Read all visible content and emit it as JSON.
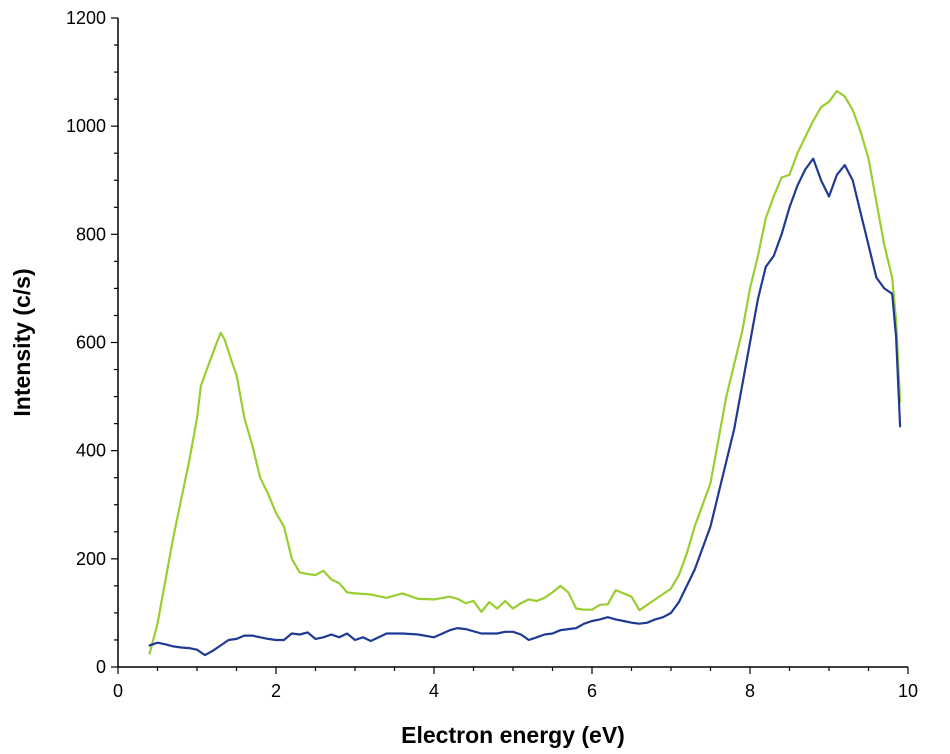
{
  "chart_data": {
    "type": "line",
    "title": "",
    "xlabel": "Electron energy (eV)",
    "ylabel": "Intensity (c/s)",
    "xlim": [
      0,
      10
    ],
    "ylim": [
      0,
      1200
    ],
    "xticks": [
      0,
      2,
      4,
      6,
      8,
      10
    ],
    "yticks": [
      0,
      200,
      400,
      600,
      800,
      1000,
      1200
    ],
    "grid": false,
    "legend": "none",
    "series": [
      {
        "name": "green",
        "color": "#9acd32",
        "points": [
          [
            0.4,
            25
          ],
          [
            0.5,
            80
          ],
          [
            0.6,
            160
          ],
          [
            0.7,
            240
          ],
          [
            0.8,
            310
          ],
          [
            0.9,
            380
          ],
          [
            1.0,
            460
          ],
          [
            1.05,
            520
          ],
          [
            1.15,
            560
          ],
          [
            1.25,
            600
          ],
          [
            1.3,
            618
          ],
          [
            1.35,
            605
          ],
          [
            1.45,
            560
          ],
          [
            1.5,
            540
          ],
          [
            1.6,
            460
          ],
          [
            1.7,
            410
          ],
          [
            1.8,
            350
          ],
          [
            1.9,
            320
          ],
          [
            2.0,
            285
          ],
          [
            2.1,
            260
          ],
          [
            2.2,
            200
          ],
          [
            2.3,
            175
          ],
          [
            2.4,
            172
          ],
          [
            2.5,
            170
          ],
          [
            2.6,
            178
          ],
          [
            2.7,
            162
          ],
          [
            2.8,
            155
          ],
          [
            2.9,
            138
          ],
          [
            3.0,
            136
          ],
          [
            3.2,
            134
          ],
          [
            3.4,
            128
          ],
          [
            3.6,
            136
          ],
          [
            3.8,
            126
          ],
          [
            4.0,
            125
          ],
          [
            4.2,
            130
          ],
          [
            4.3,
            126
          ],
          [
            4.4,
            118
          ],
          [
            4.5,
            122
          ],
          [
            4.6,
            102
          ],
          [
            4.7,
            120
          ],
          [
            4.8,
            108
          ],
          [
            4.9,
            122
          ],
          [
            5.0,
            108
          ],
          [
            5.1,
            118
          ],
          [
            5.2,
            125
          ],
          [
            5.3,
            122
          ],
          [
            5.4,
            128
          ],
          [
            5.5,
            138
          ],
          [
            5.6,
            150
          ],
          [
            5.7,
            138
          ],
          [
            5.8,
            108
          ],
          [
            5.9,
            106
          ],
          [
            6.0,
            106
          ],
          [
            6.1,
            115
          ],
          [
            6.2,
            116
          ],
          [
            6.3,
            142
          ],
          [
            6.4,
            136
          ],
          [
            6.5,
            130
          ],
          [
            6.6,
            105
          ],
          [
            6.7,
            115
          ],
          [
            6.8,
            125
          ],
          [
            6.9,
            135
          ],
          [
            7.0,
            145
          ],
          [
            7.1,
            170
          ],
          [
            7.2,
            210
          ],
          [
            7.3,
            260
          ],
          [
            7.4,
            300
          ],
          [
            7.5,
            340
          ],
          [
            7.6,
            420
          ],
          [
            7.7,
            500
          ],
          [
            7.8,
            560
          ],
          [
            7.9,
            620
          ],
          [
            8.0,
            700
          ],
          [
            8.1,
            760
          ],
          [
            8.2,
            830
          ],
          [
            8.3,
            870
          ],
          [
            8.4,
            905
          ],
          [
            8.5,
            910
          ],
          [
            8.6,
            950
          ],
          [
            8.7,
            980
          ],
          [
            8.8,
            1010
          ],
          [
            8.9,
            1035
          ],
          [
            9.0,
            1045
          ],
          [
            9.1,
            1065
          ],
          [
            9.2,
            1055
          ],
          [
            9.3,
            1030
          ],
          [
            9.4,
            990
          ],
          [
            9.5,
            940
          ],
          [
            9.6,
            860
          ],
          [
            9.7,
            780
          ],
          [
            9.8,
            720
          ],
          [
            9.85,
            640
          ],
          [
            9.9,
            490
          ]
        ]
      },
      {
        "name": "blue",
        "color": "#1f3a93",
        "points": [
          [
            0.4,
            40
          ],
          [
            0.5,
            45
          ],
          [
            0.6,
            42
          ],
          [
            0.7,
            38
          ],
          [
            0.8,
            36
          ],
          [
            0.9,
            35
          ],
          [
            1.0,
            32
          ],
          [
            1.1,
            22
          ],
          [
            1.2,
            30
          ],
          [
            1.3,
            40
          ],
          [
            1.4,
            50
          ],
          [
            1.5,
            52
          ],
          [
            1.6,
            58
          ],
          [
            1.7,
            58
          ],
          [
            1.8,
            55
          ],
          [
            1.9,
            52
          ],
          [
            2.0,
            50
          ],
          [
            2.1,
            50
          ],
          [
            2.2,
            62
          ],
          [
            2.3,
            60
          ],
          [
            2.4,
            64
          ],
          [
            2.5,
            52
          ],
          [
            2.6,
            55
          ],
          [
            2.7,
            60
          ],
          [
            2.8,
            55
          ],
          [
            2.9,
            62
          ],
          [
            3.0,
            50
          ],
          [
            3.1,
            55
          ],
          [
            3.2,
            48
          ],
          [
            3.3,
            55
          ],
          [
            3.4,
            62
          ],
          [
            3.6,
            62
          ],
          [
            3.8,
            60
          ],
          [
            4.0,
            55
          ],
          [
            4.2,
            68
          ],
          [
            4.3,
            72
          ],
          [
            4.4,
            70
          ],
          [
            4.6,
            62
          ],
          [
            4.8,
            62
          ],
          [
            4.9,
            65
          ],
          [
            5.0,
            65
          ],
          [
            5.1,
            60
          ],
          [
            5.2,
            50
          ],
          [
            5.3,
            55
          ],
          [
            5.4,
            60
          ],
          [
            5.5,
            62
          ],
          [
            5.6,
            68
          ],
          [
            5.7,
            70
          ],
          [
            5.8,
            72
          ],
          [
            5.9,
            80
          ],
          [
            6.0,
            85
          ],
          [
            6.1,
            88
          ],
          [
            6.2,
            92
          ],
          [
            6.3,
            88
          ],
          [
            6.4,
            85
          ],
          [
            6.5,
            82
          ],
          [
            6.6,
            80
          ],
          [
            6.7,
            82
          ],
          [
            6.8,
            88
          ],
          [
            6.9,
            92
          ],
          [
            7.0,
            100
          ],
          [
            7.1,
            120
          ],
          [
            7.2,
            150
          ],
          [
            7.3,
            180
          ],
          [
            7.4,
            220
          ],
          [
            7.5,
            260
          ],
          [
            7.6,
            320
          ],
          [
            7.7,
            380
          ],
          [
            7.8,
            440
          ],
          [
            7.9,
            520
          ],
          [
            8.0,
            600
          ],
          [
            8.1,
            680
          ],
          [
            8.2,
            740
          ],
          [
            8.3,
            760
          ],
          [
            8.4,
            800
          ],
          [
            8.5,
            850
          ],
          [
            8.6,
            890
          ],
          [
            8.7,
            920
          ],
          [
            8.8,
            940
          ],
          [
            8.9,
            900
          ],
          [
            9.0,
            870
          ],
          [
            9.1,
            910
          ],
          [
            9.2,
            928
          ],
          [
            9.3,
            900
          ],
          [
            9.4,
            840
          ],
          [
            9.5,
            780
          ],
          [
            9.6,
            720
          ],
          [
            9.7,
            700
          ],
          [
            9.8,
            690
          ],
          [
            9.85,
            610
          ],
          [
            9.9,
            445
          ]
        ]
      }
    ]
  }
}
